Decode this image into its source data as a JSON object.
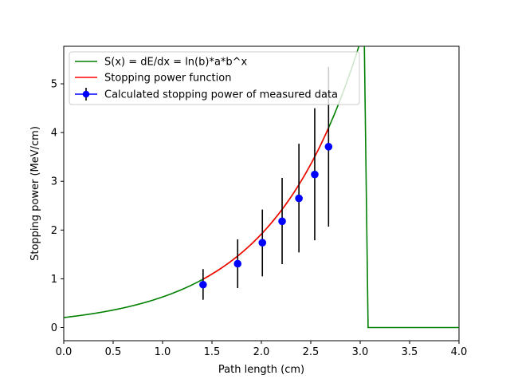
{
  "chart_data": {
    "type": "line",
    "xlabel": "Path length (cm)",
    "ylabel": "Stopping power (MeV/cm)",
    "xlim": [
      0.0,
      4.0
    ],
    "ylim": [
      -0.27,
      5.77
    ],
    "x_ticks": [
      0.0,
      0.5,
      1.0,
      1.5,
      2.0,
      2.5,
      3.0,
      3.5,
      4.0
    ],
    "x_tick_labels": [
      "0.0",
      "0.5",
      "1.0",
      "1.5",
      "2.0",
      "2.5",
      "3.0",
      "3.5",
      "4.0"
    ],
    "y_ticks": [
      0,
      1,
      2,
      3,
      4,
      5
    ],
    "y_tick_labels": [
      "0",
      "1",
      "2",
      "3",
      "4",
      "5"
    ],
    "grid": false,
    "legend_position": "top-left",
    "series": [
      {
        "name": "S(x) = dE/dx = ln(b)*a*b^x",
        "kind": "line",
        "color": "#008000",
        "model": {
          "form": "exponential",
          "a": 0.1839,
          "ln_b": 1.1169,
          "cutoff_x": 3.04,
          "after_cutoff_y": 0.0
        }
      },
      {
        "name": "Stopping power function",
        "kind": "line",
        "color": "#ff0000",
        "x_range": [
          1.41,
          2.68
        ]
      },
      {
        "name": "Calculated stopping power of measured data",
        "kind": "errorbar",
        "color": "#0000ff",
        "errorbar_color": "#000000",
        "x": [
          1.41,
          1.76,
          2.01,
          2.21,
          2.38,
          2.54,
          2.68
        ],
        "y": [
          0.88,
          1.31,
          1.74,
          2.18,
          2.65,
          3.14,
          3.71
        ],
        "y_lower": [
          0.57,
          0.81,
          1.05,
          1.3,
          1.54,
          1.79,
          2.07
        ],
        "y_upper": [
          1.2,
          1.81,
          2.42,
          3.07,
          3.77,
          4.5,
          5.35
        ]
      }
    ]
  }
}
